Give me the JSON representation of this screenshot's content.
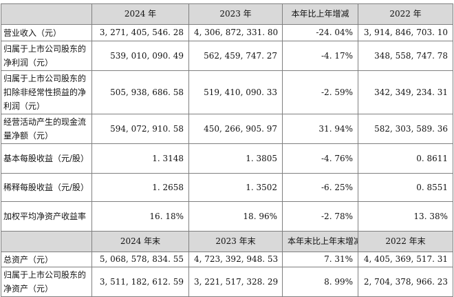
{
  "header1": {
    "col_label": "",
    "col_2024": "2024 年",
    "col_2023": "2023 年",
    "col_change": "本年比上年增减",
    "col_2022": "2022 年"
  },
  "rows1": [
    {
      "label": "营业收入（元）",
      "v2024": "3, 271, 405, 546. 28",
      "v2023": "4, 306, 872, 331. 80",
      "change": "-24. 04%",
      "v2022": "3, 914, 846, 703. 10"
    },
    {
      "label": "归属于上市公司股东的净利润（元）",
      "v2024": "539, 010, 090. 49",
      "v2023": "562, 459, 747. 27",
      "change": "-4. 17%",
      "v2022": "348, 558, 747. 78"
    },
    {
      "label": "归属于上市公司股东的扣除非经常性损益的净利润（元）",
      "v2024": "505, 938, 686. 58",
      "v2023": "519, 410, 090. 33",
      "change": "-2. 59%",
      "v2022": "342, 349, 234. 31"
    },
    {
      "label": "经营活动产生的现金流量净额（元）",
      "v2024": "594, 072, 910. 58",
      "v2023": "450, 266, 905. 97",
      "change": "31. 94%",
      "v2022": "582, 303, 589. 36"
    },
    {
      "label": "基本每股收益（元/股）",
      "v2024": "1. 3148",
      "v2023": "1. 3805",
      "change": "-4. 76%",
      "v2022": "0. 8611"
    },
    {
      "label": "稀释每股收益（元/股）",
      "v2024": "1. 2658",
      "v2023": "1. 3502",
      "change": "-6. 25%",
      "v2022": "0. 8551"
    },
    {
      "label": "加权平均净资产收益率",
      "v2024": "16. 18%",
      "v2023": "18. 96%",
      "change": "-2. 78%",
      "v2022": "13. 38%"
    }
  ],
  "header2": {
    "col_label": "",
    "col_2024": "2024 年末",
    "col_2023": "2023 年末",
    "col_change": "本年末比上年末增减",
    "col_2022": "2022 年末"
  },
  "rows2": [
    {
      "label": "总资产（元）",
      "v2024": "5, 068, 578, 834. 55",
      "v2023": "4, 723, 392, 948. 53",
      "change": "7. 31%",
      "v2022": "4, 405, 369, 517. 31"
    },
    {
      "label": "归属于上市公司股东的净资产（元）",
      "v2024": "3, 511, 182, 612. 59",
      "v2023": "3, 221, 517, 328. 29",
      "change": "8. 99%",
      "v2022": "2, 704, 378, 966. 23"
    }
  ]
}
